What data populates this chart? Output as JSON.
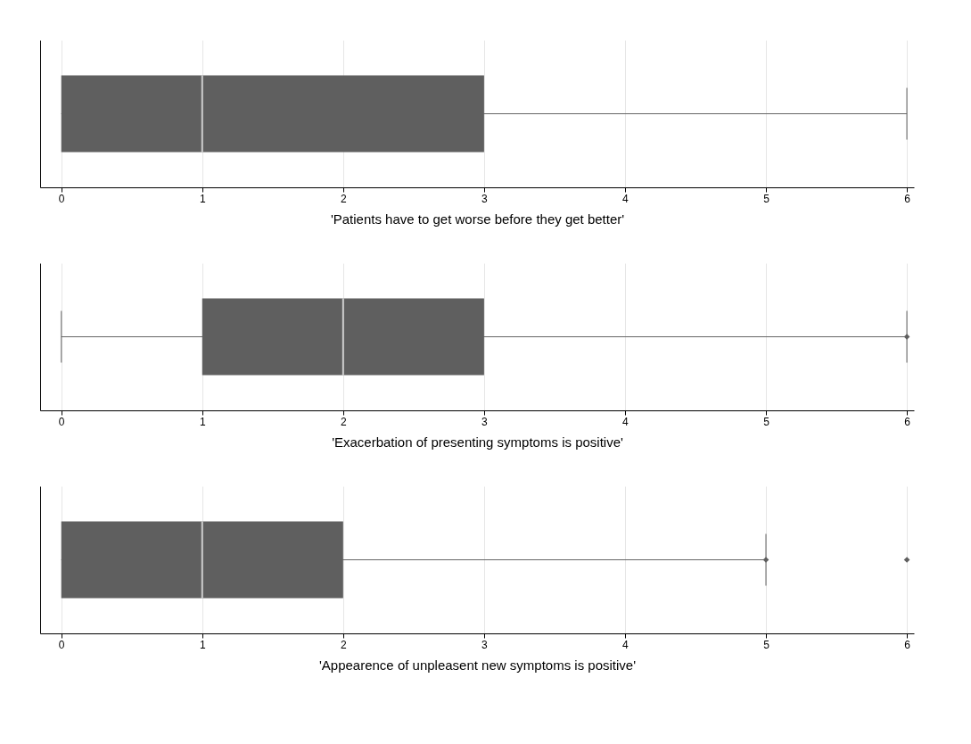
{
  "chart_data": [
    {
      "type": "box",
      "orientation": "horizontal",
      "categories": [
        null
      ],
      "color": "#5f5f5f",
      "boxes": [
        {
          "low": 0,
          "q1": 0,
          "median": 1,
          "q3": 3,
          "high": 6
        }
      ],
      "xlim": [
        -0.15,
        6.05
      ],
      "xticks": [
        0,
        1,
        2,
        3,
        4,
        5,
        6
      ],
      "xlabel": "'Patients have to get worse before they get better'",
      "grid": "x",
      "tick_labels": "x",
      "marker": "diamond"
    },
    {
      "type": "box",
      "orientation": "horizontal",
      "categories": [
        null
      ],
      "color": "#5f5f5f",
      "boxes": [
        {
          "low": 0,
          "q1": 1,
          "median": 2,
          "q3": 3,
          "high": 6,
          "outliers": [
            6
          ]
        }
      ],
      "xlim": [
        -0.15,
        6.05
      ],
      "xticks": [
        0,
        1,
        2,
        3,
        4,
        5,
        6
      ],
      "xlabel": "'Exacerbation of presenting symptoms is positive'",
      "grid": "x",
      "tick_labels": "x",
      "marker": "diamond"
    },
    {
      "type": "box",
      "orientation": "horizontal",
      "categories": [
        null
      ],
      "color": "#5f5f5f",
      "boxes": [
        {
          "low": 0,
          "q1": 0,
          "median": 1,
          "q3": 2,
          "high": 5,
          "outliers": [
            5,
            6
          ]
        }
      ],
      "xlim": [
        -0.15,
        6.05
      ],
      "xticks": [
        0,
        1,
        2,
        3,
        4,
        5,
        6
      ],
      "xlabel": "'Appearence of unpleasent new symptoms is positive'",
      "grid": "x",
      "tick_labels": "x",
      "marker": "diamond"
    }
  ]
}
